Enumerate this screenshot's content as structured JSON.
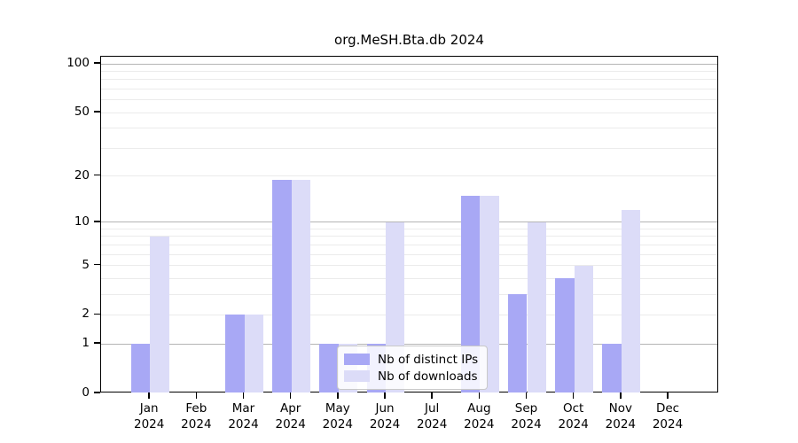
{
  "title": "org.MeSH.Bta.db 2024",
  "colors": {
    "distinct_ips_bar": "#a8a8f5",
    "downloads_bar": "#dcdcf8",
    "grid_major": "#b4b4b4",
    "grid_minor": "#ebebeb",
    "axis": "#000000",
    "legend_border": "#c9c9c9"
  },
  "legend": {
    "items": [
      "Nb of distinct IPs",
      "Nb of downloads"
    ]
  },
  "chart_data": {
    "type": "bar",
    "title": "org.MeSH.Bta.db 2024",
    "scale": "log1p",
    "categories": [
      "Jan",
      "Feb",
      "Mar",
      "Apr",
      "May",
      "Jun",
      "Jul",
      "Aug",
      "Sep",
      "Oct",
      "Nov",
      "Dec"
    ],
    "category_year": "2024",
    "series": [
      {
        "name": "Nb of distinct IPs",
        "color": "#a8a8f5",
        "values": [
          1,
          0,
          2,
          19,
          1,
          1,
          0,
          15,
          3,
          4,
          1,
          0
        ]
      },
      {
        "name": "Nb of downloads",
        "color": "#dcdcf8",
        "values": [
          8,
          0,
          2,
          19,
          1,
          10,
          0,
          15,
          10,
          5,
          12,
          0
        ]
      }
    ],
    "xlabel": "",
    "ylabel": "",
    "ylim": [
      0,
      100
    ],
    "y_ticks": [
      0,
      1,
      2,
      5,
      10,
      20,
      50,
      100
    ],
    "y_gridlines_major": [
      1,
      10,
      100
    ],
    "y_gridlines_minor": [
      2,
      3,
      4,
      5,
      6,
      7,
      8,
      9,
      20,
      30,
      40,
      50,
      60,
      70,
      80,
      90
    ],
    "grid": true,
    "legend_position": "lower center inside"
  }
}
